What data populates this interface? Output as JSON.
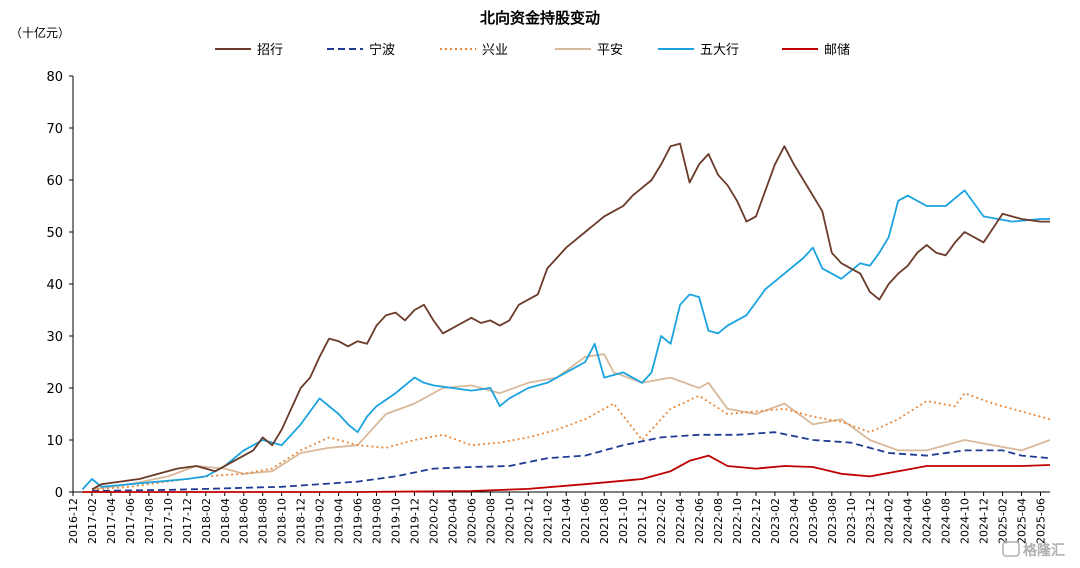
{
  "chart_data": {
    "type": "line",
    "title": "北向资金持股变动",
    "unit_label": "（十亿元）",
    "ylim": [
      0,
      80
    ],
    "yticks": [
      0,
      10,
      20,
      30,
      40,
      50,
      60,
      70,
      80
    ],
    "xlim": [
      "2016-12",
      "2025-07"
    ],
    "xticks": [
      "2016-12",
      "2017-02",
      "2017-04",
      "2017-06",
      "2017-08",
      "2017-10",
      "2017-12",
      "2018-02",
      "2018-04",
      "2018-06",
      "2018-08",
      "2018-10",
      "2018-12",
      "2019-02",
      "2019-04",
      "2019-06",
      "2019-08",
      "2019-10",
      "2019-12",
      "2020-02",
      "2020-04",
      "2020-06",
      "2020-08",
      "2020-10",
      "2020-12",
      "2021-02",
      "2021-04",
      "2021-06",
      "2021-08",
      "2021-10",
      "2021-12",
      "2022-02",
      "2022-04",
      "2022-06",
      "2022-08",
      "2022-10",
      "2022-12",
      "2023-02",
      "2023-04",
      "2023-06",
      "2023-08",
      "2023-10",
      "2023-12",
      "2024-02",
      "2024-04",
      "2024-06",
      "2024-08",
      "2024-10",
      "2024-12",
      "2025-02",
      "2025-04",
      "2025-06"
    ],
    "grid": false,
    "legend": "top",
    "series": [
      {
        "name": "招行",
        "color": "#6b3a2a",
        "dash": "solid",
        "x": [
          "2017-02",
          "2017-03",
          "2017-05",
          "2017-07",
          "2017-09",
          "2017-11",
          "2018-01",
          "2018-03",
          "2018-05",
          "2018-07",
          "2018-08",
          "2018-09",
          "2018-10",
          "2018-11",
          "2018-12",
          "2019-01",
          "2019-02",
          "2019-03",
          "2019-04",
          "2019-05",
          "2019-06",
          "2019-07",
          "2019-08",
          "2019-09",
          "2019-10",
          "2019-11",
          "2019-12",
          "2020-01",
          "2020-02",
          "2020-03",
          "2020-04",
          "2020-05",
          "2020-06",
          "2020-07",
          "2020-08",
          "2020-09",
          "2020-10",
          "2020-11",
          "2020-12",
          "2021-01",
          "2021-02",
          "2021-03",
          "2021-04",
          "2021-05",
          "2021-06",
          "2021-07",
          "2021-08",
          "2021-09",
          "2021-10",
          "2021-11",
          "2021-12",
          "2022-01",
          "2022-02",
          "2022-03",
          "2022-04",
          "2022-05",
          "2022-06",
          "2022-07",
          "2022-08",
          "2022-09",
          "2022-10",
          "2022-11",
          "2022-12",
          "2023-01",
          "2023-02",
          "2023-03",
          "2023-04",
          "2023-05",
          "2023-06",
          "2023-07",
          "2023-08",
          "2023-09",
          "2023-10",
          "2023-11",
          "2023-12",
          "2024-01",
          "2024-02",
          "2024-03",
          "2024-04",
          "2024-05",
          "2024-06",
          "2024-07",
          "2024-08",
          "2024-09",
          "2024-10",
          "2024-12",
          "2025-02",
          "2025-04",
          "2025-06",
          "2025-07"
        ],
        "values": [
          0.5,
          1.5,
          2.0,
          2.5,
          3.5,
          4.5,
          5.0,
          4.0,
          6.0,
          8.0,
          10.5,
          9.0,
          12.0,
          16.0,
          20.0,
          22.0,
          26.0,
          29.5,
          29.0,
          28.0,
          29.0,
          28.5,
          32.0,
          34.0,
          34.5,
          33.0,
          35.0,
          36.0,
          33.0,
          30.5,
          31.5,
          32.5,
          33.5,
          32.5,
          33.0,
          32.0,
          33.0,
          36.0,
          37.0,
          38.0,
          43.0,
          45.0,
          47.0,
          48.5,
          50.0,
          51.5,
          53.0,
          54.0,
          55.0,
          57.0,
          58.5,
          60.0,
          63.0,
          66.5,
          67.0,
          59.5,
          63.0,
          65.0,
          61.0,
          59.0,
          56.0,
          52.0,
          53.0,
          58.0,
          63.0,
          66.5,
          63.0,
          60.0,
          57.0,
          54.0,
          46.0,
          44.0,
          43.0,
          42.0,
          38.5,
          37.0,
          40.0,
          42.0,
          43.5,
          46.0,
          47.5,
          46.0,
          45.5,
          48.0,
          50.0,
          48.0,
          53.5,
          52.5,
          52.0,
          52.0
        ]
      },
      {
        "name": "宁波",
        "color": "#1f3a93",
        "dash": "dashed",
        "x": [
          "2017-02",
          "2017-06",
          "2017-10",
          "2018-02",
          "2018-06",
          "2018-10",
          "2019-02",
          "2019-06",
          "2019-10",
          "2020-02",
          "2020-06",
          "2020-10",
          "2021-02",
          "2021-06",
          "2021-10",
          "2022-02",
          "2022-06",
          "2022-10",
          "2023-02",
          "2023-06",
          "2023-10",
          "2024-02",
          "2024-06",
          "2024-10",
          "2025-02",
          "2025-04",
          "2025-07"
        ],
        "values": [
          0.2,
          0.3,
          0.4,
          0.6,
          0.8,
          1.0,
          1.5,
          2.0,
          3.0,
          4.5,
          4.8,
          5.0,
          6.5,
          7.0,
          9.0,
          10.5,
          11.0,
          11.0,
          11.5,
          10.0,
          9.5,
          7.5,
          7.0,
          8.0,
          8.0,
          7.0,
          6.5
        ]
      },
      {
        "name": "兴业",
        "color": "#e8883a",
        "dash": "dotted",
        "x": [
          "2017-02",
          "2017-06",
          "2017-10",
          "2018-02",
          "2018-06",
          "2018-09",
          "2018-12",
          "2019-03",
          "2019-06",
          "2019-09",
          "2019-12",
          "2020-03",
          "2020-06",
          "2020-09",
          "2020-12",
          "2021-03",
          "2021-06",
          "2021-09",
          "2021-12",
          "2022-03",
          "2022-06",
          "2022-09",
          "2022-12",
          "2023-03",
          "2023-06",
          "2023-09",
          "2023-12",
          "2024-03",
          "2024-06",
          "2024-09",
          "2024-10",
          "2025-01",
          "2025-04",
          "2025-07"
        ],
        "values": [
          0.5,
          1.0,
          2.0,
          3.0,
          3.5,
          4.5,
          8.0,
          10.5,
          9.0,
          8.5,
          10.0,
          11.0,
          9.0,
          9.5,
          10.5,
          12.0,
          14.0,
          17.0,
          10.0,
          16.0,
          18.5,
          15.0,
          15.5,
          16.0,
          14.5,
          13.5,
          11.5,
          14.0,
          17.5,
          16.5,
          19.0,
          17.0,
          15.5,
          14.0
        ]
      },
      {
        "name": "平安",
        "color": "#d9b99b",
        "dash": "solid",
        "x": [
          "2017-02",
          "2017-06",
          "2017-10",
          "2018-01",
          "2018-04",
          "2018-06",
          "2018-09",
          "2018-12",
          "2019-03",
          "2019-06",
          "2019-09",
          "2019-12",
          "2020-03",
          "2020-06",
          "2020-09",
          "2020-12",
          "2021-03",
          "2021-06",
          "2021-08",
          "2021-09",
          "2021-12",
          "2022-03",
          "2022-06",
          "2022-07",
          "2022-09",
          "2022-12",
          "2023-03",
          "2023-06",
          "2023-09",
          "2023-12",
          "2024-03",
          "2024-06",
          "2024-10",
          "2025-01",
          "2025-04",
          "2025-07"
        ],
        "values": [
          0.5,
          1.5,
          3.0,
          5.0,
          4.5,
          3.5,
          4.0,
          7.5,
          8.5,
          9.0,
          15.0,
          17.0,
          20.0,
          20.5,
          19.0,
          21.0,
          22.0,
          26.0,
          26.5,
          23.0,
          21.0,
          22.0,
          20.0,
          21.0,
          16.0,
          15.0,
          17.0,
          13.0,
          14.0,
          10.0,
          8.0,
          8.0,
          10.0,
          9.0,
          8.0,
          10.0
        ]
      },
      {
        "name": "五大行",
        "color": "#1aa3e0",
        "dash": "solid",
        "x": [
          "2017-01",
          "2017-02",
          "2017-03",
          "2017-06",
          "2017-09",
          "2017-12",
          "2018-02",
          "2018-04",
          "2018-06",
          "2018-08",
          "2018-10",
          "2018-12",
          "2019-02",
          "2019-04",
          "2019-05",
          "2019-06",
          "2019-07",
          "2019-08",
          "2019-10",
          "2019-12",
          "2020-01",
          "2020-02",
          "2020-04",
          "2020-06",
          "2020-08",
          "2020-09",
          "2020-10",
          "2020-12",
          "2021-02",
          "2021-04",
          "2021-06",
          "2021-07",
          "2021-08",
          "2021-10",
          "2021-12",
          "2022-01",
          "2022-02",
          "2022-03",
          "2022-04",
          "2022-05",
          "2022-06",
          "2022-07",
          "2022-08",
          "2022-09",
          "2022-11",
          "2023-01",
          "2023-03",
          "2023-05",
          "2023-06",
          "2023-07",
          "2023-09",
          "2023-11",
          "2023-12",
          "2024-01",
          "2024-02",
          "2024-03",
          "2024-04",
          "2024-06",
          "2024-08",
          "2024-09",
          "2024-10",
          "2024-12",
          "2025-03",
          "2025-06",
          "2025-07"
        ],
        "values": [
          0.5,
          2.5,
          1.0,
          1.5,
          2.0,
          2.5,
          3.0,
          5.0,
          8.0,
          10.0,
          9.0,
          13.0,
          18.0,
          15.0,
          13.0,
          11.5,
          14.5,
          16.5,
          19.0,
          22.0,
          21.0,
          20.5,
          20.0,
          19.5,
          20.0,
          16.5,
          18.0,
          20.0,
          21.0,
          23.0,
          25.0,
          28.5,
          22.0,
          23.0,
          21.0,
          23.0,
          30.0,
          28.5,
          36.0,
          38.0,
          37.5,
          31.0,
          30.5,
          32.0,
          34.0,
          39.0,
          42.0,
          45.0,
          47.0,
          43.0,
          41.0,
          44.0,
          43.5,
          46.0,
          49.0,
          56.0,
          57.0,
          55.0,
          55.0,
          56.5,
          58.0,
          53.0,
          52.0,
          52.5,
          52.5
        ]
      },
      {
        "name": "邮储",
        "color": "#c00000",
        "dash": "solid",
        "x": [
          "2017-01",
          "2019-06",
          "2020-06",
          "2020-12",
          "2021-06",
          "2021-12",
          "2022-03",
          "2022-05",
          "2022-06",
          "2022-07",
          "2022-09",
          "2022-12",
          "2023-03",
          "2023-06",
          "2023-09",
          "2023-12",
          "2024-03",
          "2024-06",
          "2024-10",
          "2025-01",
          "2025-04",
          "2025-07"
        ],
        "values": [
          0.0,
          0.0,
          0.2,
          0.6,
          1.5,
          2.5,
          4.0,
          6.0,
          6.5,
          7.0,
          5.0,
          4.5,
          5.0,
          4.8,
          3.5,
          3.0,
          4.0,
          5.0,
          5.0,
          5.0,
          5.0,
          5.2
        ]
      }
    ]
  },
  "watermark": "格隆汇"
}
